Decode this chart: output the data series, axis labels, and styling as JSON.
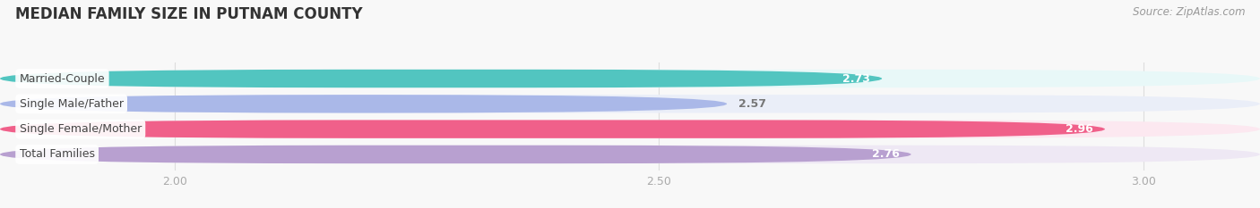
{
  "title": "MEDIAN FAMILY SIZE IN PUTNAM COUNTY",
  "source": "Source: ZipAtlas.com",
  "categories": [
    "Married-Couple",
    "Single Male/Father",
    "Single Female/Mother",
    "Total Families"
  ],
  "values": [
    2.73,
    2.57,
    2.96,
    2.76
  ],
  "bar_colors": [
    "#52c5c0",
    "#aab8e8",
    "#f0608a",
    "#b8a0d0"
  ],
  "bar_bg_colors": [
    "#e8f8f8",
    "#eaeef8",
    "#fce8f0",
    "#eee8f4"
  ],
  "xlim": [
    1.82,
    3.12
  ],
  "xticks": [
    2.0,
    2.5,
    3.0
  ],
  "value_white": [
    true,
    false,
    true,
    true
  ],
  "title_fontsize": 12,
  "source_fontsize": 8.5,
  "background_color": "#f8f8f8"
}
